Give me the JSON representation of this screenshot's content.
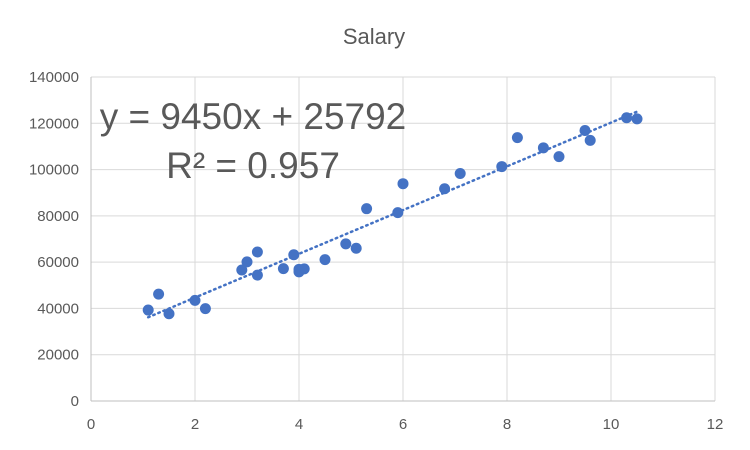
{
  "chart_data": {
    "type": "scatter",
    "title": "Salary",
    "xlabel": "",
    "ylabel": "",
    "xlim": [
      0,
      12
    ],
    "ylim": [
      0,
      140000
    ],
    "x_ticks": [
      0,
      2,
      4,
      6,
      8,
      10,
      12
    ],
    "y_ticks": [
      0,
      20000,
      40000,
      60000,
      80000,
      100000,
      120000,
      140000
    ],
    "grid": true,
    "legend": "none",
    "series": [
      {
        "color": "#4472C4",
        "points": [
          {
            "x": 1.1,
            "y": 39300
          },
          {
            "x": 1.3,
            "y": 46200
          },
          {
            "x": 1.5,
            "y": 37700
          },
          {
            "x": 2.0,
            "y": 43500
          },
          {
            "x": 2.2,
            "y": 39900
          },
          {
            "x": 2.9,
            "y": 56600
          },
          {
            "x": 3.0,
            "y": 60100
          },
          {
            "x": 3.2,
            "y": 54400
          },
          {
            "x": 3.2,
            "y": 64400
          },
          {
            "x": 3.7,
            "y": 57200
          },
          {
            "x": 3.9,
            "y": 63200
          },
          {
            "x": 4.0,
            "y": 55800
          },
          {
            "x": 4.0,
            "y": 56900
          },
          {
            "x": 4.1,
            "y": 57100
          },
          {
            "x": 4.5,
            "y": 61100
          },
          {
            "x": 4.9,
            "y": 67900
          },
          {
            "x": 5.1,
            "y": 66000
          },
          {
            "x": 5.3,
            "y": 83100
          },
          {
            "x": 5.9,
            "y": 81400
          },
          {
            "x": 6.0,
            "y": 93900
          },
          {
            "x": 6.8,
            "y": 91700
          },
          {
            "x": 7.1,
            "y": 98300
          },
          {
            "x": 7.9,
            "y": 101300
          },
          {
            "x": 8.2,
            "y": 113800
          },
          {
            "x": 8.7,
            "y": 109400
          },
          {
            "x": 9.0,
            "y": 105600
          },
          {
            "x": 9.5,
            "y": 116900
          },
          {
            "x": 9.6,
            "y": 112600
          },
          {
            "x": 10.3,
            "y": 122400
          },
          {
            "x": 10.5,
            "y": 121900
          }
        ]
      }
    ],
    "trendline": {
      "type": "linear",
      "slope": 9450,
      "intercept": 25792,
      "x_range": [
        1.1,
        10.5
      ],
      "color": "#4472C4",
      "style": "dotted",
      "equation": "y = 9450x + 25792",
      "r_squared": "R² = 0.957"
    }
  }
}
